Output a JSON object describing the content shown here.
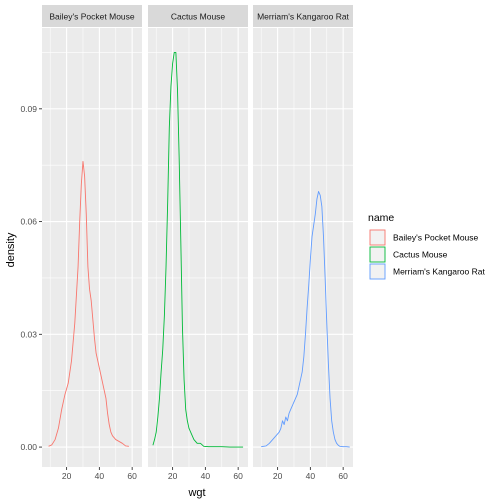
{
  "chart_data": {
    "type": "line",
    "xlabel": "wgt",
    "ylabel": "density",
    "xlim": [
      5,
      66
    ],
    "ylim": [
      -0.0053,
      0.1115
    ],
    "x_ticks": [
      20,
      40,
      60
    ],
    "x_tick_labels": [
      "20",
      "40",
      "60"
    ],
    "y_ticks": [
      0,
      0.03,
      0.06,
      0.09
    ],
    "y_tick_labels": [
      "0.00",
      "0.03",
      "0.06",
      "0.09"
    ],
    "grid": true,
    "legend": {
      "title": "name",
      "position": "right",
      "entries": [
        "Bailey's Pocket Mouse",
        "Cactus Mouse",
        "Merriam's Kangaroo Rat"
      ]
    },
    "panels": [
      {
        "strip": "Bailey's Pocket Mouse",
        "series": [
          {
            "name": "Bailey's Pocket Mouse",
            "color": "#F8766D",
            "points": [
              [
                9,
                0.0002
              ],
              [
                11,
                0.0006
              ],
              [
                13,
                0.002
              ],
              [
                15,
                0.005
              ],
              [
                17,
                0.01
              ],
              [
                19,
                0.014
              ],
              [
                21,
                0.017
              ],
              [
                23,
                0.023
              ],
              [
                25,
                0.033
              ],
              [
                27,
                0.048
              ],
              [
                28,
                0.06
              ],
              [
                29,
                0.07
              ],
              [
                30,
                0.076
              ],
              [
                31,
                0.072
              ],
              [
                32,
                0.062
              ],
              [
                33,
                0.048
              ],
              [
                34,
                0.042
              ],
              [
                35,
                0.039
              ],
              [
                36,
                0.034
              ],
              [
                37,
                0.029
              ],
              [
                38,
                0.025
              ],
              [
                40,
                0.021
              ],
              [
                42,
                0.017
              ],
              [
                44,
                0.013
              ],
              [
                45,
                0.009
              ],
              [
                46,
                0.006
              ],
              [
                47,
                0.004
              ],
              [
                48,
                0.003
              ],
              [
                50,
                0.002
              ],
              [
                52,
                0.0015
              ],
              [
                54,
                0.001
              ],
              [
                56,
                0.0003
              ],
              [
                58,
                0.0002
              ]
            ]
          }
        ]
      },
      {
        "strip": "Cactus Mouse",
        "series": [
          {
            "name": "Cactus Mouse",
            "color": "#00BA38",
            "points": [
              [
                8,
                0.0005
              ],
              [
                9,
                0.002
              ],
              [
                10,
                0.004
              ],
              [
                11,
                0.008
              ],
              [
                12,
                0.013
              ],
              [
                13,
                0.02
              ],
              [
                14,
                0.026
              ],
              [
                15,
                0.035
              ],
              [
                16,
                0.048
              ],
              [
                17,
                0.065
              ],
              [
                18,
                0.085
              ],
              [
                19,
                0.096
              ],
              [
                20,
                0.102
              ],
              [
                21,
                0.105
              ],
              [
                22,
                0.105
              ],
              [
                23,
                0.095
              ],
              [
                24,
                0.077
              ],
              [
                25,
                0.055
              ],
              [
                26,
                0.032
              ],
              [
                27,
                0.018
              ],
              [
                28,
                0.01
              ],
              [
                29,
                0.007
              ],
              [
                30,
                0.005
              ],
              [
                31,
                0.004
              ],
              [
                32,
                0.003
              ],
              [
                33,
                0.002
              ],
              [
                35,
                0.001
              ],
              [
                37,
                0.001
              ],
              [
                39,
                0.0002
              ],
              [
                42,
                0.0001
              ],
              [
                45,
                0.0001
              ],
              [
                50,
                0.0001
              ],
              [
                55,
                0.0
              ],
              [
                60,
                0.0
              ],
              [
                63,
                0.0
              ]
            ]
          }
        ]
      },
      {
        "strip": "Merriam's Kangaroo Rat",
        "series": [
          {
            "name": "Merriam's Kangaroo Rat",
            "color": "#619CFF",
            "points": [
              [
                10,
                0.0001
              ],
              [
                13,
                0.0003
              ],
              [
                15,
                0.001
              ],
              [
                17,
                0.002
              ],
              [
                19,
                0.003
              ],
              [
                21,
                0.004
              ],
              [
                22,
                0.005
              ],
              [
                23,
                0.007
              ],
              [
                24,
                0.006
              ],
              [
                25,
                0.008
              ],
              [
                26,
                0.007
              ],
              [
                27,
                0.009
              ],
              [
                28,
                0.01
              ],
              [
                29,
                0.011
              ],
              [
                30,
                0.012
              ],
              [
                31,
                0.013
              ],
              [
                32,
                0.014
              ],
              [
                33,
                0.016
              ],
              [
                34,
                0.018
              ],
              [
                35,
                0.02
              ],
              [
                36,
                0.024
              ],
              [
                37,
                0.03
              ],
              [
                38,
                0.037
              ],
              [
                39,
                0.043
              ],
              [
                40,
                0.05
              ],
              [
                41,
                0.056
              ],
              [
                42,
                0.059
              ],
              [
                43,
                0.062
              ],
              [
                44,
                0.066
              ],
              [
                45,
                0.068
              ],
              [
                46,
                0.067
              ],
              [
                47,
                0.064
              ],
              [
                48,
                0.056
              ],
              [
                49,
                0.045
              ],
              [
                50,
                0.033
              ],
              [
                51,
                0.022
              ],
              [
                52,
                0.013
              ],
              [
                53,
                0.007
              ],
              [
                54,
                0.004
              ],
              [
                55,
                0.002
              ],
              [
                56,
                0.001
              ],
              [
                57,
                0.0005
              ],
              [
                58,
                0.0002
              ],
              [
                60,
                0.0001
              ],
              [
                62,
                0.0001
              ],
              [
                64,
                0.0
              ]
            ]
          }
        ]
      }
    ]
  }
}
